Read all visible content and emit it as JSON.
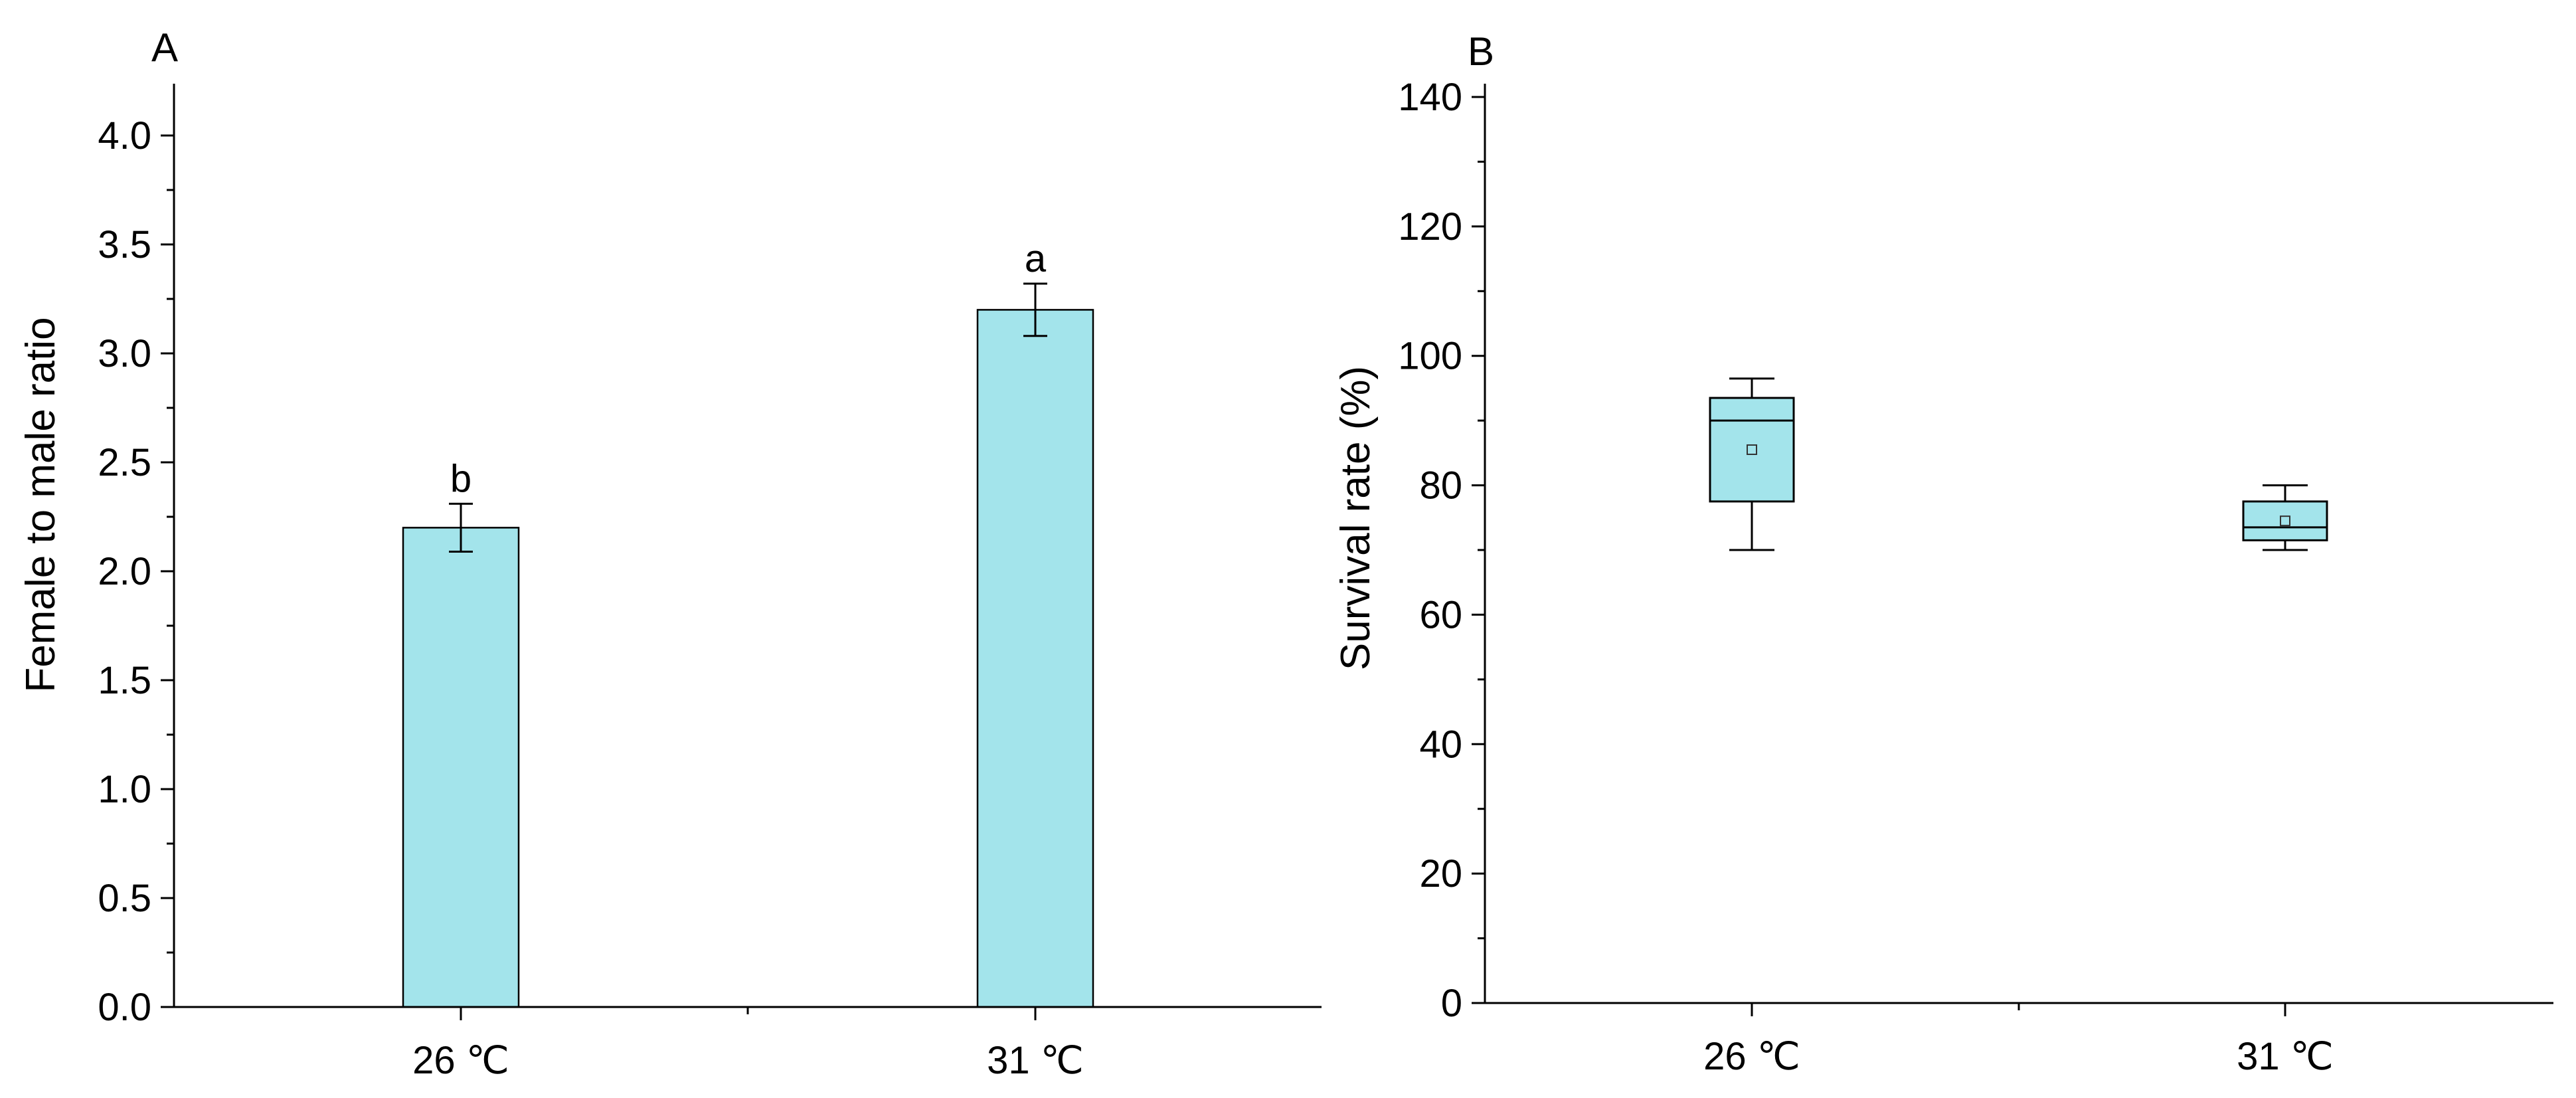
{
  "chart_data": [
    {
      "type": "bar",
      "panel_label": "A",
      "title": "",
      "xlabel": "",
      "ylabel": "Female to male ratio",
      "categories": [
        "26 ℃",
        "31 ℃"
      ],
      "values": [
        2.2,
        3.2
      ],
      "error": [
        0.11,
        0.12
      ],
      "significance": [
        "b",
        "a"
      ],
      "ylim": [
        0,
        4.2
      ],
      "yticks": [
        0.0,
        0.5,
        1.0,
        1.5,
        2.0,
        2.5,
        3.0,
        3.5,
        4.0
      ],
      "ytick_labels": [
        "0.0",
        "0.5",
        "1.0",
        "1.5",
        "2.0",
        "2.5",
        "3.0",
        "3.5",
        "4.0"
      ],
      "grid": false,
      "color": "#a3e4eb"
    },
    {
      "type": "box",
      "panel_label": "B",
      "title": "",
      "xlabel": "",
      "ylabel": "Survival rate (%)",
      "categories": [
        "26 ℃",
        "31 ℃"
      ],
      "boxes": [
        {
          "whisker_low": 70,
          "q1": 77.5,
          "median": 90,
          "q3": 93.5,
          "whisker_high": 96.5,
          "mean": 85.5
        },
        {
          "whisker_low": 70,
          "q1": 71.5,
          "median": 73.5,
          "q3": 77.5,
          "whisker_high": 80,
          "mean": 74.5
        }
      ],
      "ylim": [
        0,
        140
      ],
      "yticks": [
        0,
        20,
        40,
        60,
        80,
        100,
        120,
        140
      ],
      "ytick_labels": [
        "0",
        "20",
        "40",
        "60",
        "80",
        "100",
        "120",
        "140"
      ],
      "grid": false,
      "color": "#a3e4eb"
    }
  ]
}
